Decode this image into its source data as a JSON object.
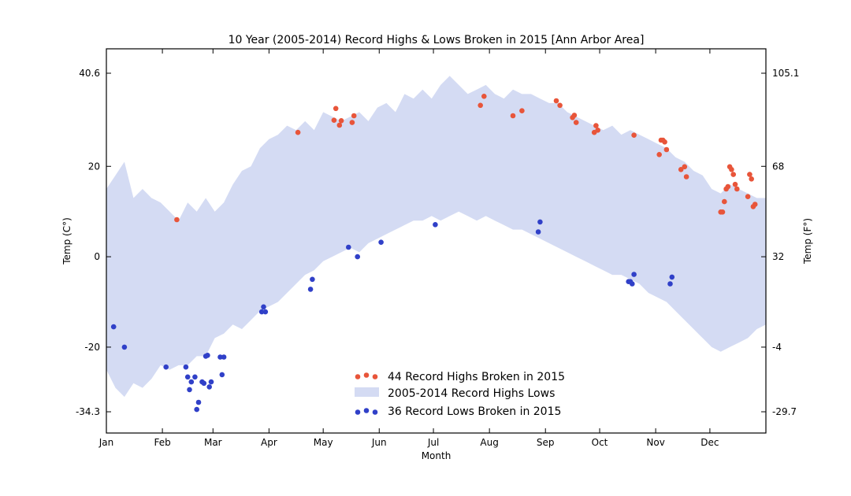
{
  "chart_data": {
    "type": "scatter",
    "title": "10 Year (2005-2014) Record Highs & Lows Broken in 2015 [Ann Arbor Area]",
    "xlabel": "Month",
    "ylabel_left": "Temp (C°)",
    "ylabel_right": "Temp (F°)",
    "xlim": [
      0,
      365
    ],
    "ylim": [
      -39,
      46
    ],
    "x_ticks": [
      {
        "value": 0,
        "label": "Jan"
      },
      {
        "value": 31,
        "label": "Feb"
      },
      {
        "value": 59,
        "label": "Mar"
      },
      {
        "value": 90,
        "label": "Apr"
      },
      {
        "value": 120,
        "label": "May"
      },
      {
        "value": 151,
        "label": "Jun"
      },
      {
        "value": 181,
        "label": "Jul"
      },
      {
        "value": 212,
        "label": "Aug"
      },
      {
        "value": 243,
        "label": "Sep"
      },
      {
        "value": 273,
        "label": "Oct"
      },
      {
        "value": 304,
        "label": "Nov"
      },
      {
        "value": 334,
        "label": "Dec"
      }
    ],
    "y_ticks_left": [
      {
        "value": 40.6,
        "label": "40.6"
      },
      {
        "value": 20,
        "label": "20"
      },
      {
        "value": 0,
        "label": "0"
      },
      {
        "value": -20,
        "label": "-20"
      },
      {
        "value": -34.3,
        "label": "-34.3"
      }
    ],
    "y_ticks_right": [
      {
        "value": 40.6,
        "label": "105.1"
      },
      {
        "value": 20,
        "label": "68"
      },
      {
        "value": 0,
        "label": "32"
      },
      {
        "value": -20,
        "label": "-4"
      },
      {
        "value": -34.3,
        "label": "-29.7"
      }
    ],
    "band": {
      "name": "2005-2014 Record Highs Lows",
      "color": "#d4dbf3",
      "high": [
        [
          0,
          15
        ],
        [
          5,
          18
        ],
        [
          10,
          21
        ],
        [
          15,
          13
        ],
        [
          20,
          15
        ],
        [
          25,
          13
        ],
        [
          30,
          12
        ],
        [
          35,
          10
        ],
        [
          40,
          8
        ],
        [
          45,
          12
        ],
        [
          50,
          10
        ],
        [
          55,
          13
        ],
        [
          60,
          10
        ],
        [
          65,
          12
        ],
        [
          70,
          16
        ],
        [
          75,
          19
        ],
        [
          80,
          20
        ],
        [
          85,
          24
        ],
        [
          90,
          26
        ],
        [
          95,
          27
        ],
        [
          100,
          29
        ],
        [
          105,
          28
        ],
        [
          110,
          30
        ],
        [
          115,
          28
        ],
        [
          120,
          32
        ],
        [
          125,
          31
        ],
        [
          130,
          30
        ],
        [
          135,
          31
        ],
        [
          140,
          32
        ],
        [
          145,
          30
        ],
        [
          150,
          33
        ],
        [
          155,
          34
        ],
        [
          160,
          32
        ],
        [
          165,
          36
        ],
        [
          170,
          35
        ],
        [
          175,
          37
        ],
        [
          180,
          35
        ],
        [
          185,
          38
        ],
        [
          190,
          40
        ],
        [
          195,
          38
        ],
        [
          200,
          36
        ],
        [
          205,
          37
        ],
        [
          210,
          38
        ],
        [
          215,
          36
        ],
        [
          220,
          35
        ],
        [
          225,
          37
        ],
        [
          230,
          36
        ],
        [
          235,
          36
        ],
        [
          240,
          35
        ],
        [
          245,
          34
        ],
        [
          250,
          34
        ],
        [
          255,
          32
        ],
        [
          260,
          31
        ],
        [
          265,
          30
        ],
        [
          270,
          29
        ],
        [
          275,
          28
        ],
        [
          280,
          29
        ],
        [
          285,
          27
        ],
        [
          290,
          28
        ],
        [
          295,
          27
        ],
        [
          300,
          26
        ],
        [
          305,
          25
        ],
        [
          310,
          24
        ],
        [
          315,
          22
        ],
        [
          320,
          21
        ],
        [
          325,
          19
        ],
        [
          330,
          18
        ],
        [
          335,
          15
        ],
        [
          340,
          14
        ],
        [
          345,
          16
        ],
        [
          350,
          15
        ],
        [
          355,
          14
        ],
        [
          360,
          13
        ],
        [
          365,
          13
        ]
      ],
      "low": [
        [
          0,
          -25
        ],
        [
          5,
          -29
        ],
        [
          10,
          -31
        ],
        [
          15,
          -28
        ],
        [
          20,
          -29
        ],
        [
          25,
          -27
        ],
        [
          30,
          -24
        ],
        [
          35,
          -25
        ],
        [
          40,
          -24
        ],
        [
          45,
          -24
        ],
        [
          50,
          -22
        ],
        [
          55,
          -22
        ],
        [
          60,
          -18
        ],
        [
          65,
          -17
        ],
        [
          70,
          -15
        ],
        [
          75,
          -16
        ],
        [
          80,
          -14
        ],
        [
          85,
          -12
        ],
        [
          90,
          -11
        ],
        [
          95,
          -10
        ],
        [
          100,
          -8
        ],
        [
          105,
          -6
        ],
        [
          110,
          -4
        ],
        [
          115,
          -3
        ],
        [
          120,
          -1
        ],
        [
          125,
          0
        ],
        [
          130,
          1
        ],
        [
          135,
          2
        ],
        [
          140,
          1
        ],
        [
          145,
          3
        ],
        [
          150,
          4
        ],
        [
          155,
          5
        ],
        [
          160,
          6
        ],
        [
          165,
          7
        ],
        [
          170,
          8
        ],
        [
          175,
          8
        ],
        [
          180,
          9
        ],
        [
          185,
          8
        ],
        [
          190,
          9
        ],
        [
          195,
          10
        ],
        [
          200,
          9
        ],
        [
          205,
          8
        ],
        [
          210,
          9
        ],
        [
          215,
          8
        ],
        [
          220,
          7
        ],
        [
          225,
          6
        ],
        [
          230,
          6
        ],
        [
          235,
          5
        ],
        [
          240,
          4
        ],
        [
          245,
          3
        ],
        [
          250,
          2
        ],
        [
          255,
          1
        ],
        [
          260,
          0
        ],
        [
          265,
          -1
        ],
        [
          270,
          -2
        ],
        [
          275,
          -3
        ],
        [
          280,
          -4
        ],
        [
          285,
          -4
        ],
        [
          290,
          -5
        ],
        [
          295,
          -6
        ],
        [
          300,
          -8
        ],
        [
          305,
          -9
        ],
        [
          310,
          -10
        ],
        [
          315,
          -12
        ],
        [
          320,
          -14
        ],
        [
          325,
          -16
        ],
        [
          330,
          -18
        ],
        [
          335,
          -20
        ],
        [
          340,
          -21
        ],
        [
          345,
          -20
        ],
        [
          350,
          -19
        ],
        [
          355,
          -18
        ],
        [
          360,
          -16
        ],
        [
          365,
          -15
        ]
      ]
    },
    "series": [
      {
        "name": "44 Record Highs Broken in 2015",
        "legend_label": "44 Record Highs Broken in 2015",
        "color": "#e8553a",
        "points": [
          [
            39,
            8.2
          ],
          [
            106,
            27.5
          ],
          [
            126,
            30.2
          ],
          [
            127,
            32.8
          ],
          [
            129,
            29.1
          ],
          [
            130,
            30.1
          ],
          [
            136,
            29.7
          ],
          [
            137,
            31.2
          ],
          [
            207,
            33.5
          ],
          [
            209,
            35.5
          ],
          [
            225,
            31.2
          ],
          [
            230,
            32.3
          ],
          [
            249,
            34.5
          ],
          [
            251,
            33.5
          ],
          [
            258,
            30.8
          ],
          [
            259,
            31.3
          ],
          [
            260,
            29.7
          ],
          [
            270,
            27.5
          ],
          [
            271,
            29
          ],
          [
            272,
            28
          ],
          [
            292,
            26.9
          ],
          [
            306,
            22.6
          ],
          [
            307,
            25.8
          ],
          [
            308,
            25.8
          ],
          [
            309,
            25.4
          ],
          [
            310,
            23.7
          ],
          [
            318,
            19.3
          ],
          [
            320,
            19.9
          ],
          [
            321,
            17.7
          ],
          [
            340,
            9.9
          ],
          [
            341,
            9.9
          ],
          [
            342,
            12.2
          ],
          [
            343,
            15
          ],
          [
            344,
            15.5
          ],
          [
            345,
            19.9
          ],
          [
            346,
            19.3
          ],
          [
            347,
            18.2
          ],
          [
            348,
            16
          ],
          [
            349,
            15
          ],
          [
            355,
            13.3
          ],
          [
            356,
            18.2
          ],
          [
            357,
            17.2
          ],
          [
            358,
            11.1
          ],
          [
            359,
            11.6
          ]
        ]
      },
      {
        "name": "36 Record Lows Broken in 2015",
        "legend_label": "36 Record Lows Broken in 2015",
        "color": "#3040c8",
        "points": [
          [
            4,
            -15.5
          ],
          [
            10,
            -20
          ],
          [
            33,
            -24.4
          ],
          [
            44,
            -24.4
          ],
          [
            45,
            -26.6
          ],
          [
            46,
            -29.4
          ],
          [
            47,
            -27.7
          ],
          [
            49,
            -26.6
          ],
          [
            50,
            -33.8
          ],
          [
            51,
            -32.2
          ],
          [
            53,
            -27.7
          ],
          [
            54,
            -28
          ],
          [
            55,
            -22
          ],
          [
            56,
            -21.8
          ],
          [
            57,
            -28.8
          ],
          [
            58,
            -27.7
          ],
          [
            63,
            -22.2
          ],
          [
            64,
            -26.1
          ],
          [
            65,
            -22.2
          ],
          [
            86,
            -12.2
          ],
          [
            87,
            -11.1
          ],
          [
            88,
            -12.2
          ],
          [
            113,
            -7.2
          ],
          [
            114,
            -5
          ],
          [
            134,
            2.1
          ],
          [
            139,
            0
          ],
          [
            152,
            3.2
          ],
          [
            182,
            7.1
          ],
          [
            239,
            5.5
          ],
          [
            240,
            7.7
          ],
          [
            289,
            -5.5
          ],
          [
            290,
            -5.5
          ],
          [
            291,
            -6
          ],
          [
            292,
            -3.9
          ],
          [
            312,
            -6
          ],
          [
            313,
            -4.5
          ]
        ]
      }
    ]
  }
}
